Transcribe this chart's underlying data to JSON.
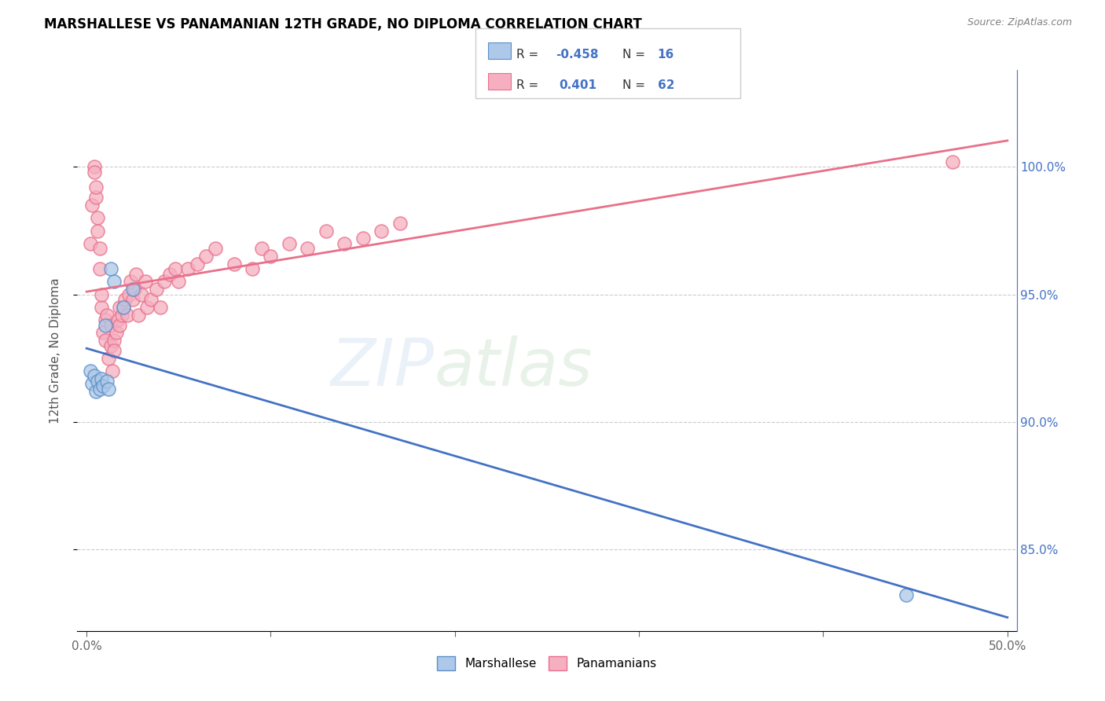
{
  "title": "MARSHALLESE VS PANAMANIAN 12TH GRADE, NO DIPLOMA CORRELATION CHART",
  "source": "Source: ZipAtlas.com",
  "ylabel": "12th Grade, No Diploma",
  "xlim": [
    -0.005,
    0.505
  ],
  "ylim": [
    0.818,
    1.038
  ],
  "xticks": [
    0.0,
    0.1,
    0.2,
    0.3,
    0.4,
    0.5
  ],
  "xticklabels": [
    "0.0%",
    "",
    "",
    "",
    "",
    "50.0%"
  ],
  "yticks": [
    0.85,
    0.9,
    0.95,
    1.0
  ],
  "yticklabels": [
    "85.0%",
    "90.0%",
    "95.0%",
    "100.0%"
  ],
  "marshallese_R": -0.458,
  "marshallese_N": 16,
  "panamanian_R": 0.401,
  "panamanian_N": 62,
  "marshallese_color": "#adc8e8",
  "panamanian_color": "#f5afc0",
  "marshallese_edge_color": "#5b8fc9",
  "panamanian_edge_color": "#e8708a",
  "marshallese_line_color": "#4472c4",
  "panamanian_line_color": "#e8708a",
  "marshallese_x": [
    0.002,
    0.003,
    0.004,
    0.005,
    0.006,
    0.007,
    0.008,
    0.009,
    0.01,
    0.011,
    0.012,
    0.013,
    0.015,
    0.02,
    0.025,
    0.445
  ],
  "marshallese_y": [
    0.92,
    0.915,
    0.918,
    0.912,
    0.916,
    0.913,
    0.917,
    0.914,
    0.938,
    0.916,
    0.913,
    0.96,
    0.955,
    0.945,
    0.952,
    0.832
  ],
  "panamanian_x": [
    0.002,
    0.003,
    0.004,
    0.004,
    0.005,
    0.005,
    0.006,
    0.006,
    0.007,
    0.007,
    0.008,
    0.008,
    0.009,
    0.01,
    0.01,
    0.011,
    0.012,
    0.013,
    0.013,
    0.014,
    0.015,
    0.015,
    0.016,
    0.017,
    0.018,
    0.018,
    0.019,
    0.02,
    0.021,
    0.022,
    0.023,
    0.024,
    0.025,
    0.026,
    0.027,
    0.028,
    0.03,
    0.032,
    0.033,
    0.035,
    0.038,
    0.04,
    0.042,
    0.045,
    0.048,
    0.05,
    0.055,
    0.06,
    0.065,
    0.07,
    0.08,
    0.09,
    0.095,
    0.1,
    0.11,
    0.12,
    0.13,
    0.14,
    0.15,
    0.16,
    0.17,
    0.47
  ],
  "panamanian_y": [
    0.97,
    0.985,
    1.0,
    0.998,
    0.988,
    0.992,
    0.975,
    0.98,
    0.96,
    0.968,
    0.945,
    0.95,
    0.935,
    0.94,
    0.932,
    0.942,
    0.925,
    0.93,
    0.938,
    0.92,
    0.932,
    0.928,
    0.935,
    0.94,
    0.945,
    0.938,
    0.942,
    0.945,
    0.948,
    0.942,
    0.95,
    0.955,
    0.948,
    0.952,
    0.958,
    0.942,
    0.95,
    0.955,
    0.945,
    0.948,
    0.952,
    0.945,
    0.955,
    0.958,
    0.96,
    0.955,
    0.96,
    0.962,
    0.965,
    0.968,
    0.962,
    0.96,
    0.968,
    0.965,
    0.97,
    0.968,
    0.975,
    0.97,
    0.972,
    0.975,
    0.978,
    1.002
  ]
}
